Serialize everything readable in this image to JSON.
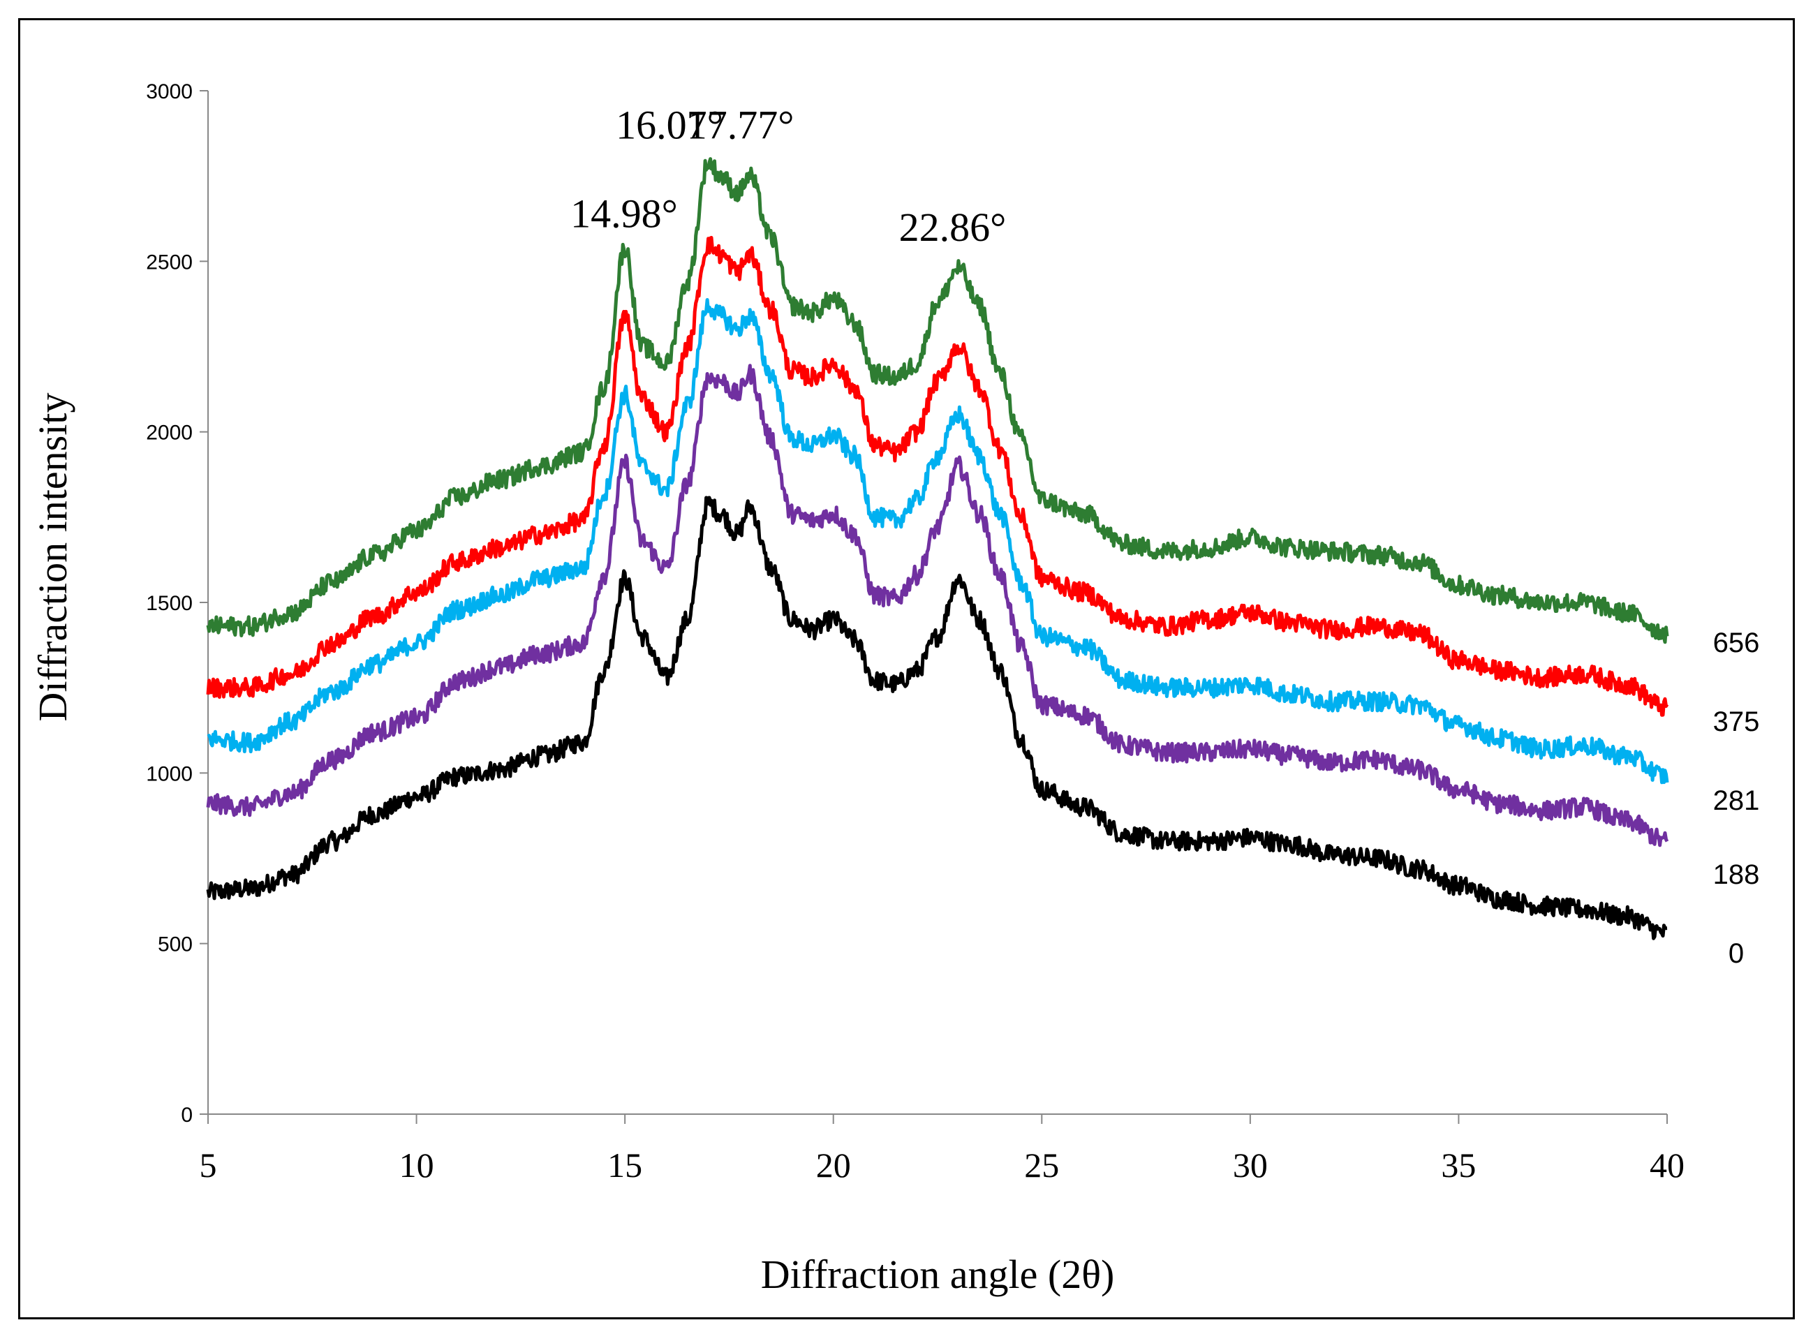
{
  "chart_data": {
    "type": "line",
    "title": "",
    "xlabel": "Diffraction angle (2θ)",
    "ylabel": "Diffraction intensity",
    "xlim": [
      5,
      40
    ],
    "ylim": [
      0,
      3000
    ],
    "x_ticks": [
      "5",
      "10",
      "15",
      "20",
      "25",
      "30",
      "35",
      "40"
    ],
    "y_ticks": [
      "0",
      "500",
      "1000",
      "1500",
      "2000",
      "2500",
      "3000"
    ],
    "grid": false,
    "x": [
      5,
      6,
      7,
      8,
      9,
      10,
      11,
      12,
      13,
      14,
      14.5,
      15,
      15.4,
      16,
      16.5,
      17,
      17.3,
      17.7,
      18,
      18.5,
      19,
      19.5,
      20,
      20.5,
      21,
      21.5,
      22,
      22.5,
      23,
      23.5,
      24,
      24.5,
      25,
      26,
      27,
      28,
      29,
      30,
      31,
      32,
      33,
      34,
      35,
      36,
      37,
      38,
      39,
      40
    ],
    "series": [
      {
        "name": "0",
        "color": "#000000",
        "values": [
          650,
          660,
          700,
          800,
          880,
          930,
          990,
          1010,
          1050,
          1090,
          1300,
          1570,
          1400,
          1280,
          1450,
          1790,
          1760,
          1700,
          1780,
          1600,
          1450,
          1420,
          1450,
          1390,
          1270,
          1260,
          1300,
          1400,
          1570,
          1450,
          1300,
          1100,
          950,
          900,
          820,
          800,
          800,
          810,
          790,
          760,
          750,
          720,
          670,
          630,
          610,
          600,
          580,
          530
        ]
      },
      {
        "name": "188",
        "color": "#7030A0",
        "values": [
          910,
          900,
          940,
          1040,
          1120,
          1160,
          1270,
          1310,
          1350,
          1380,
          1580,
          1910,
          1680,
          1600,
          1850,
          2160,
          2150,
          2110,
          2170,
          1980,
          1760,
          1740,
          1760,
          1700,
          1520,
          1510,
          1580,
          1720,
          1900,
          1760,
          1580,
          1370,
          1200,
          1170,
          1080,
          1060,
          1060,
          1070,
          1050,
          1030,
          1040,
          1010,
          950,
          910,
          890,
          900,
          860,
          800
        ]
      },
      {
        "name": "281",
        "color": "#00B0F0",
        "values": [
          1100,
          1090,
          1150,
          1240,
          1320,
          1380,
          1480,
          1520,
          1570,
          1600,
          1820,
          2110,
          1900,
          1830,
          2080,
          2370,
          2340,
          2300,
          2340,
          2170,
          1980,
          1960,
          1990,
          1930,
          1750,
          1740,
          1800,
          1930,
          2050,
          1930,
          1760,
          1560,
          1400,
          1370,
          1270,
          1250,
          1250,
          1260,
          1230,
          1210,
          1210,
          1200,
          1140,
          1100,
          1070,
          1080,
          1050,
          990
        ]
      },
      {
        "name": "375",
        "color": "#FF0000",
        "values": [
          1250,
          1250,
          1290,
          1380,
          1460,
          1530,
          1620,
          1660,
          1700,
          1740,
          1960,
          2340,
          2100,
          2000,
          2250,
          2550,
          2520,
          2470,
          2520,
          2360,
          2180,
          2160,
          2200,
          2130,
          1960,
          1940,
          2000,
          2150,
          2250,
          2130,
          1950,
          1750,
          1570,
          1530,
          1450,
          1430,
          1450,
          1470,
          1440,
          1420,
          1430,
          1410,
          1330,
          1300,
          1280,
          1290,
          1260,
          1190
        ]
      },
      {
        "name": "656",
        "color": "#2E7D32",
        "values": [
          1430,
          1430,
          1470,
          1560,
          1640,
          1710,
          1810,
          1860,
          1900,
          1940,
          2130,
          2540,
          2250,
          2200,
          2440,
          2790,
          2750,
          2700,
          2750,
          2570,
          2370,
          2350,
          2390,
          2320,
          2170,
          2160,
          2200,
          2380,
          2480,
          2370,
          2170,
          1980,
          1800,
          1760,
          1670,
          1650,
          1660,
          1690,
          1660,
          1650,
          1640,
          1620,
          1550,
          1520,
          1500,
          1500,
          1470,
          1410
        ]
      }
    ],
    "series_labels": [
      "656",
      "375",
      "281",
      "188",
      "0"
    ],
    "annotations": [
      {
        "text": "14.98°",
        "x": 14.98,
        "y": 2600
      },
      {
        "text": "16.07°",
        "x": 16.07,
        "y": 2860
      },
      {
        "text": "17.77°",
        "x": 17.77,
        "y": 2860
      },
      {
        "text": "22.86°",
        "x": 22.86,
        "y": 2560
      }
    ]
  }
}
